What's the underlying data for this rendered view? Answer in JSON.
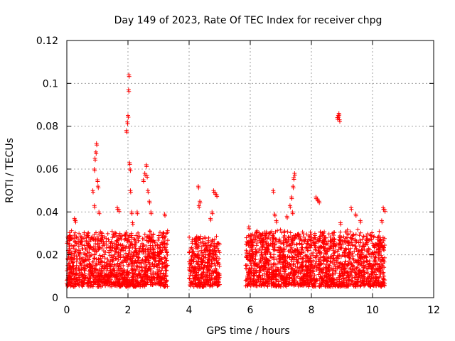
{
  "chart_data": {
    "type": "scatter",
    "title": "Day 149 of 2023, Rate Of TEC Index for receiver chpg",
    "xlabel": "GPS time / hours",
    "ylabel": "ROTI / TECUs",
    "xlim": [
      0,
      12
    ],
    "ylim": [
      0,
      0.12
    ],
    "xticks": [
      0,
      2,
      4,
      6,
      8,
      10,
      12
    ],
    "yticks": [
      0,
      0.02,
      0.04,
      0.06,
      0.08,
      0.1,
      0.12
    ],
    "xtick_labels": [
      "0",
      "2",
      "4",
      "6",
      "8",
      "10",
      "12"
    ],
    "ytick_labels": [
      "0",
      "0.02",
      "0.04",
      "0.06",
      "0.08",
      "0.1",
      "0.12"
    ],
    "grid": true,
    "marker": "+",
    "color": "#ff0000",
    "data_segments": [
      {
        "x_start": 0.0,
        "x_end": 3.3,
        "baseline_min": 0.005,
        "baseline_max": 0.03
      },
      {
        "x_start": 4.0,
        "x_end": 5.0,
        "baseline_min": 0.005,
        "baseline_max": 0.028
      },
      {
        "x_start": 5.85,
        "x_end": 10.4,
        "baseline_min": 0.005,
        "baseline_max": 0.03
      }
    ],
    "notable_points": [
      {
        "x": 0.25,
        "y": 0.037
      },
      {
        "x": 0.28,
        "y": 0.036
      },
      {
        "x": 0.85,
        "y": 0.05
      },
      {
        "x": 0.9,
        "y": 0.06
      },
      {
        "x": 0.92,
        "y": 0.065
      },
      {
        "x": 0.95,
        "y": 0.068
      },
      {
        "x": 0.97,
        "y": 0.072
      },
      {
        "x": 1.0,
        "y": 0.055
      },
      {
        "x": 1.02,
        "y": 0.052
      },
      {
        "x": 0.9,
        "y": 0.043
      },
      {
        "x": 1.05,
        "y": 0.04
      },
      {
        "x": 1.65,
        "y": 0.042
      },
      {
        "x": 1.7,
        "y": 0.041
      },
      {
        "x": 1.95,
        "y": 0.078
      },
      {
        "x": 1.98,
        "y": 0.082
      },
      {
        "x": 2.0,
        "y": 0.085
      },
      {
        "x": 2.02,
        "y": 0.097
      },
      {
        "x": 2.03,
        "y": 0.104
      },
      {
        "x": 2.05,
        "y": 0.063
      },
      {
        "x": 2.07,
        "y": 0.06
      },
      {
        "x": 2.08,
        "y": 0.05
      },
      {
        "x": 2.12,
        "y": 0.04
      },
      {
        "x": 2.15,
        "y": 0.035
      },
      {
        "x": 2.3,
        "y": 0.04
      },
      {
        "x": 2.5,
        "y": 0.055
      },
      {
        "x": 2.55,
        "y": 0.058
      },
      {
        "x": 2.6,
        "y": 0.062
      },
      {
        "x": 2.62,
        "y": 0.057
      },
      {
        "x": 2.65,
        "y": 0.05
      },
      {
        "x": 2.7,
        "y": 0.045
      },
      {
        "x": 2.75,
        "y": 0.04
      },
      {
        "x": 3.2,
        "y": 0.039
      },
      {
        "x": 4.3,
        "y": 0.052
      },
      {
        "x": 4.35,
        "y": 0.045
      },
      {
        "x": 4.32,
        "y": 0.043
      },
      {
        "x": 4.8,
        "y": 0.05
      },
      {
        "x": 4.85,
        "y": 0.049
      },
      {
        "x": 4.9,
        "y": 0.048
      },
      {
        "x": 4.75,
        "y": 0.04
      },
      {
        "x": 4.7,
        "y": 0.037
      },
      {
        "x": 5.95,
        "y": 0.033
      },
      {
        "x": 6.75,
        "y": 0.05
      },
      {
        "x": 6.8,
        "y": 0.039
      },
      {
        "x": 6.85,
        "y": 0.036
      },
      {
        "x": 7.3,
        "y": 0.043
      },
      {
        "x": 7.35,
        "y": 0.047
      },
      {
        "x": 7.4,
        "y": 0.052
      },
      {
        "x": 7.42,
        "y": 0.056
      },
      {
        "x": 7.45,
        "y": 0.058
      },
      {
        "x": 7.38,
        "y": 0.04
      },
      {
        "x": 7.2,
        "y": 0.038
      },
      {
        "x": 8.15,
        "y": 0.047
      },
      {
        "x": 8.2,
        "y": 0.046
      },
      {
        "x": 8.25,
        "y": 0.045
      },
      {
        "x": 8.85,
        "y": 0.084
      },
      {
        "x": 8.88,
        "y": 0.085
      },
      {
        "x": 8.9,
        "y": 0.086
      },
      {
        "x": 8.92,
        "y": 0.083
      },
      {
        "x": 8.95,
        "y": 0.035
      },
      {
        "x": 9.3,
        "y": 0.042
      },
      {
        "x": 9.45,
        "y": 0.039
      },
      {
        "x": 9.6,
        "y": 0.036
      },
      {
        "x": 10.35,
        "y": 0.042
      },
      {
        "x": 10.4,
        "y": 0.041
      },
      {
        "x": 10.3,
        "y": 0.036
      }
    ]
  }
}
